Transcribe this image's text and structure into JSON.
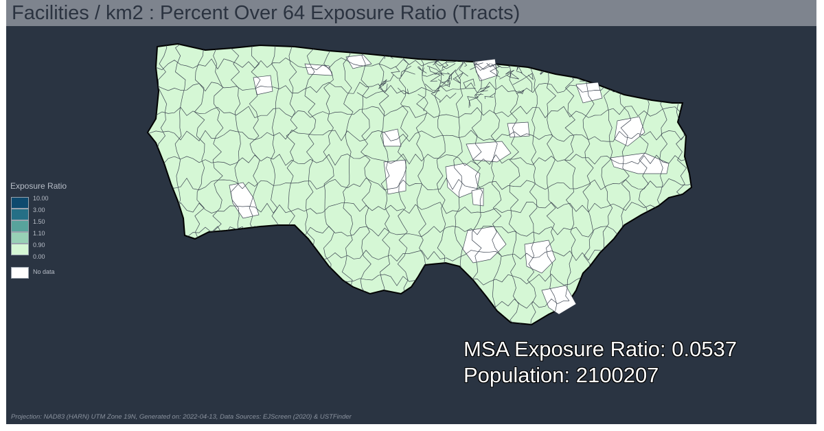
{
  "title": "Facilities / km2 : Percent Over 64 Exposure Ratio (Tracts)",
  "legend": {
    "title": "Exposure Ratio",
    "bins": [
      {
        "label": "10.00",
        "color": "#0e4a6e"
      },
      {
        "label": "3.00",
        "color": "#256f86"
      },
      {
        "label": "1.50",
        "color": "#58a39c"
      },
      {
        "label": "1.10",
        "color": "#98d0b6"
      },
      {
        "label": "0.90",
        "color": "#d5f7d5"
      },
      {
        "label": "0.00",
        "color": ""
      }
    ],
    "no_data": {
      "label": "No data",
      "color": "#ffffff"
    }
  },
  "map": {
    "region_fill": "#d5f7d5",
    "no_data_fill": "#ffffff",
    "boundary_color": "#3b4350"
  },
  "stats": {
    "exposure_ratio": "MSA Exposure Ratio: 0.0537",
    "population": "Population: 2100207"
  },
  "footer": "Projection: NAD83 (HARN) UTM Zone 19N, Generated on: 2022-04-13, Data Sources: EJScreen (2020) & USTFinder"
}
